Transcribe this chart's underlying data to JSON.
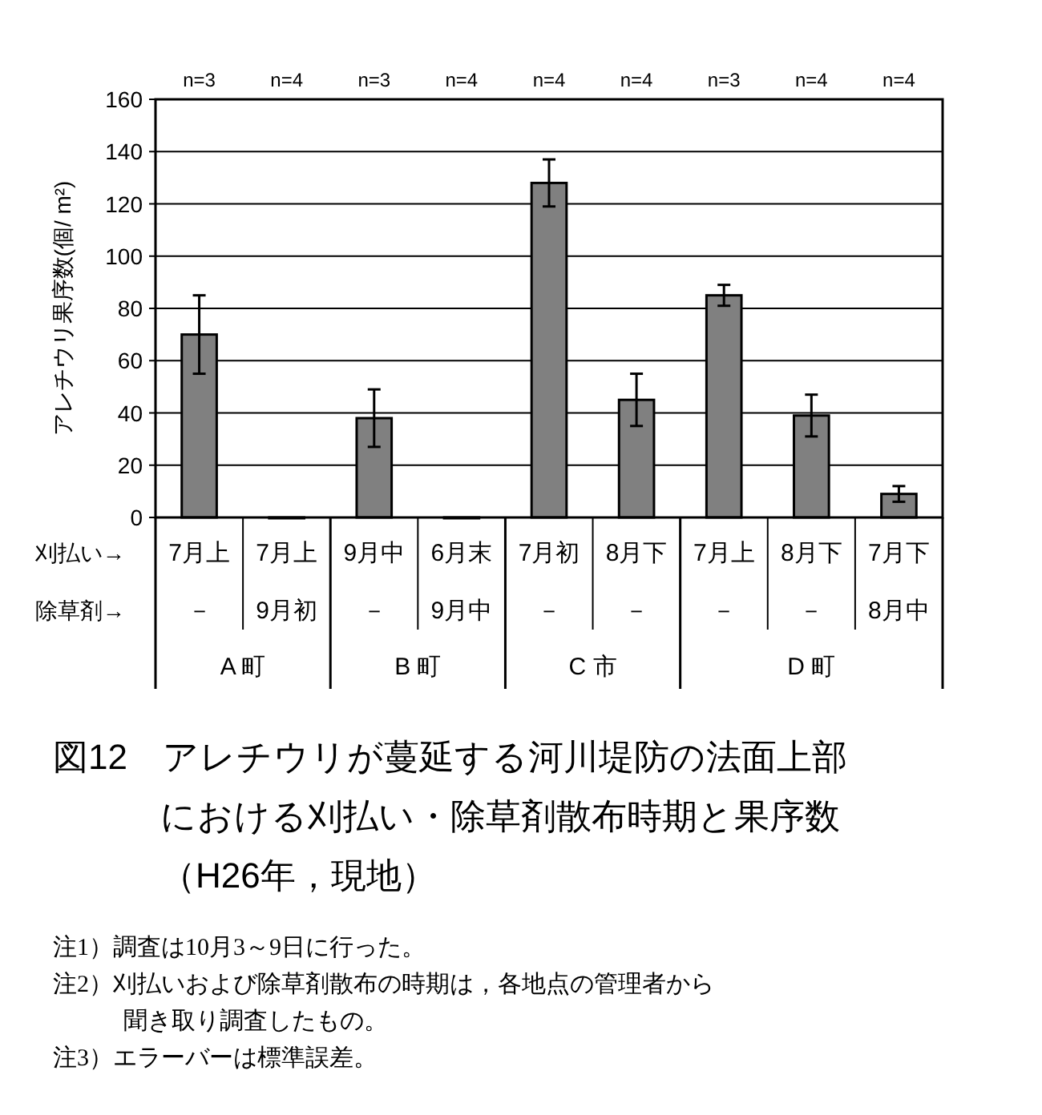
{
  "chart_data": {
    "type": "bar",
    "title": "図12　アレチウリが蔓延する河川堤防の法面上部における刈払い・除草剤散布時期と果序数（H26年，現地）",
    "ylabel": "アレチウリ果序数(個/ m²)",
    "categories": [
      "7月上",
      "7月上",
      "9月中",
      "6月末",
      "7月初",
      "8月下",
      "7月上",
      "8月下",
      "7月下"
    ],
    "values": [
      70,
      0,
      38,
      0,
      128,
      45,
      85,
      39,
      9
    ],
    "errors": [
      15,
      null,
      11,
      null,
      9,
      10,
      4,
      8,
      3
    ],
    "color": "#808080",
    "ylim": [
      0,
      160
    ],
    "yticks": [
      0,
      20,
      40,
      60,
      80,
      100,
      120,
      140,
      160
    ],
    "grid": "y",
    "annotations": [
      "n=3",
      "n=4",
      "n=3",
      "n=4",
      "n=4",
      "n=4",
      "n=3",
      "n=4",
      "n=4",
      "刈払い→",
      "除草剤→",
      "－",
      "9月初",
      "－",
      "9月中",
      "－",
      "－",
      "－",
      "－",
      "8月中",
      "A 町",
      "B 町",
      "C 市",
      "D 町",
      "注1）調査は10月3～9日に行った。",
      "注2）刈払いおよび除草剤散布の時期は，各地点の管理者から聞き取り調査したもの。",
      "注3）エラーバーは標準誤差。"
    ]
  }
}
